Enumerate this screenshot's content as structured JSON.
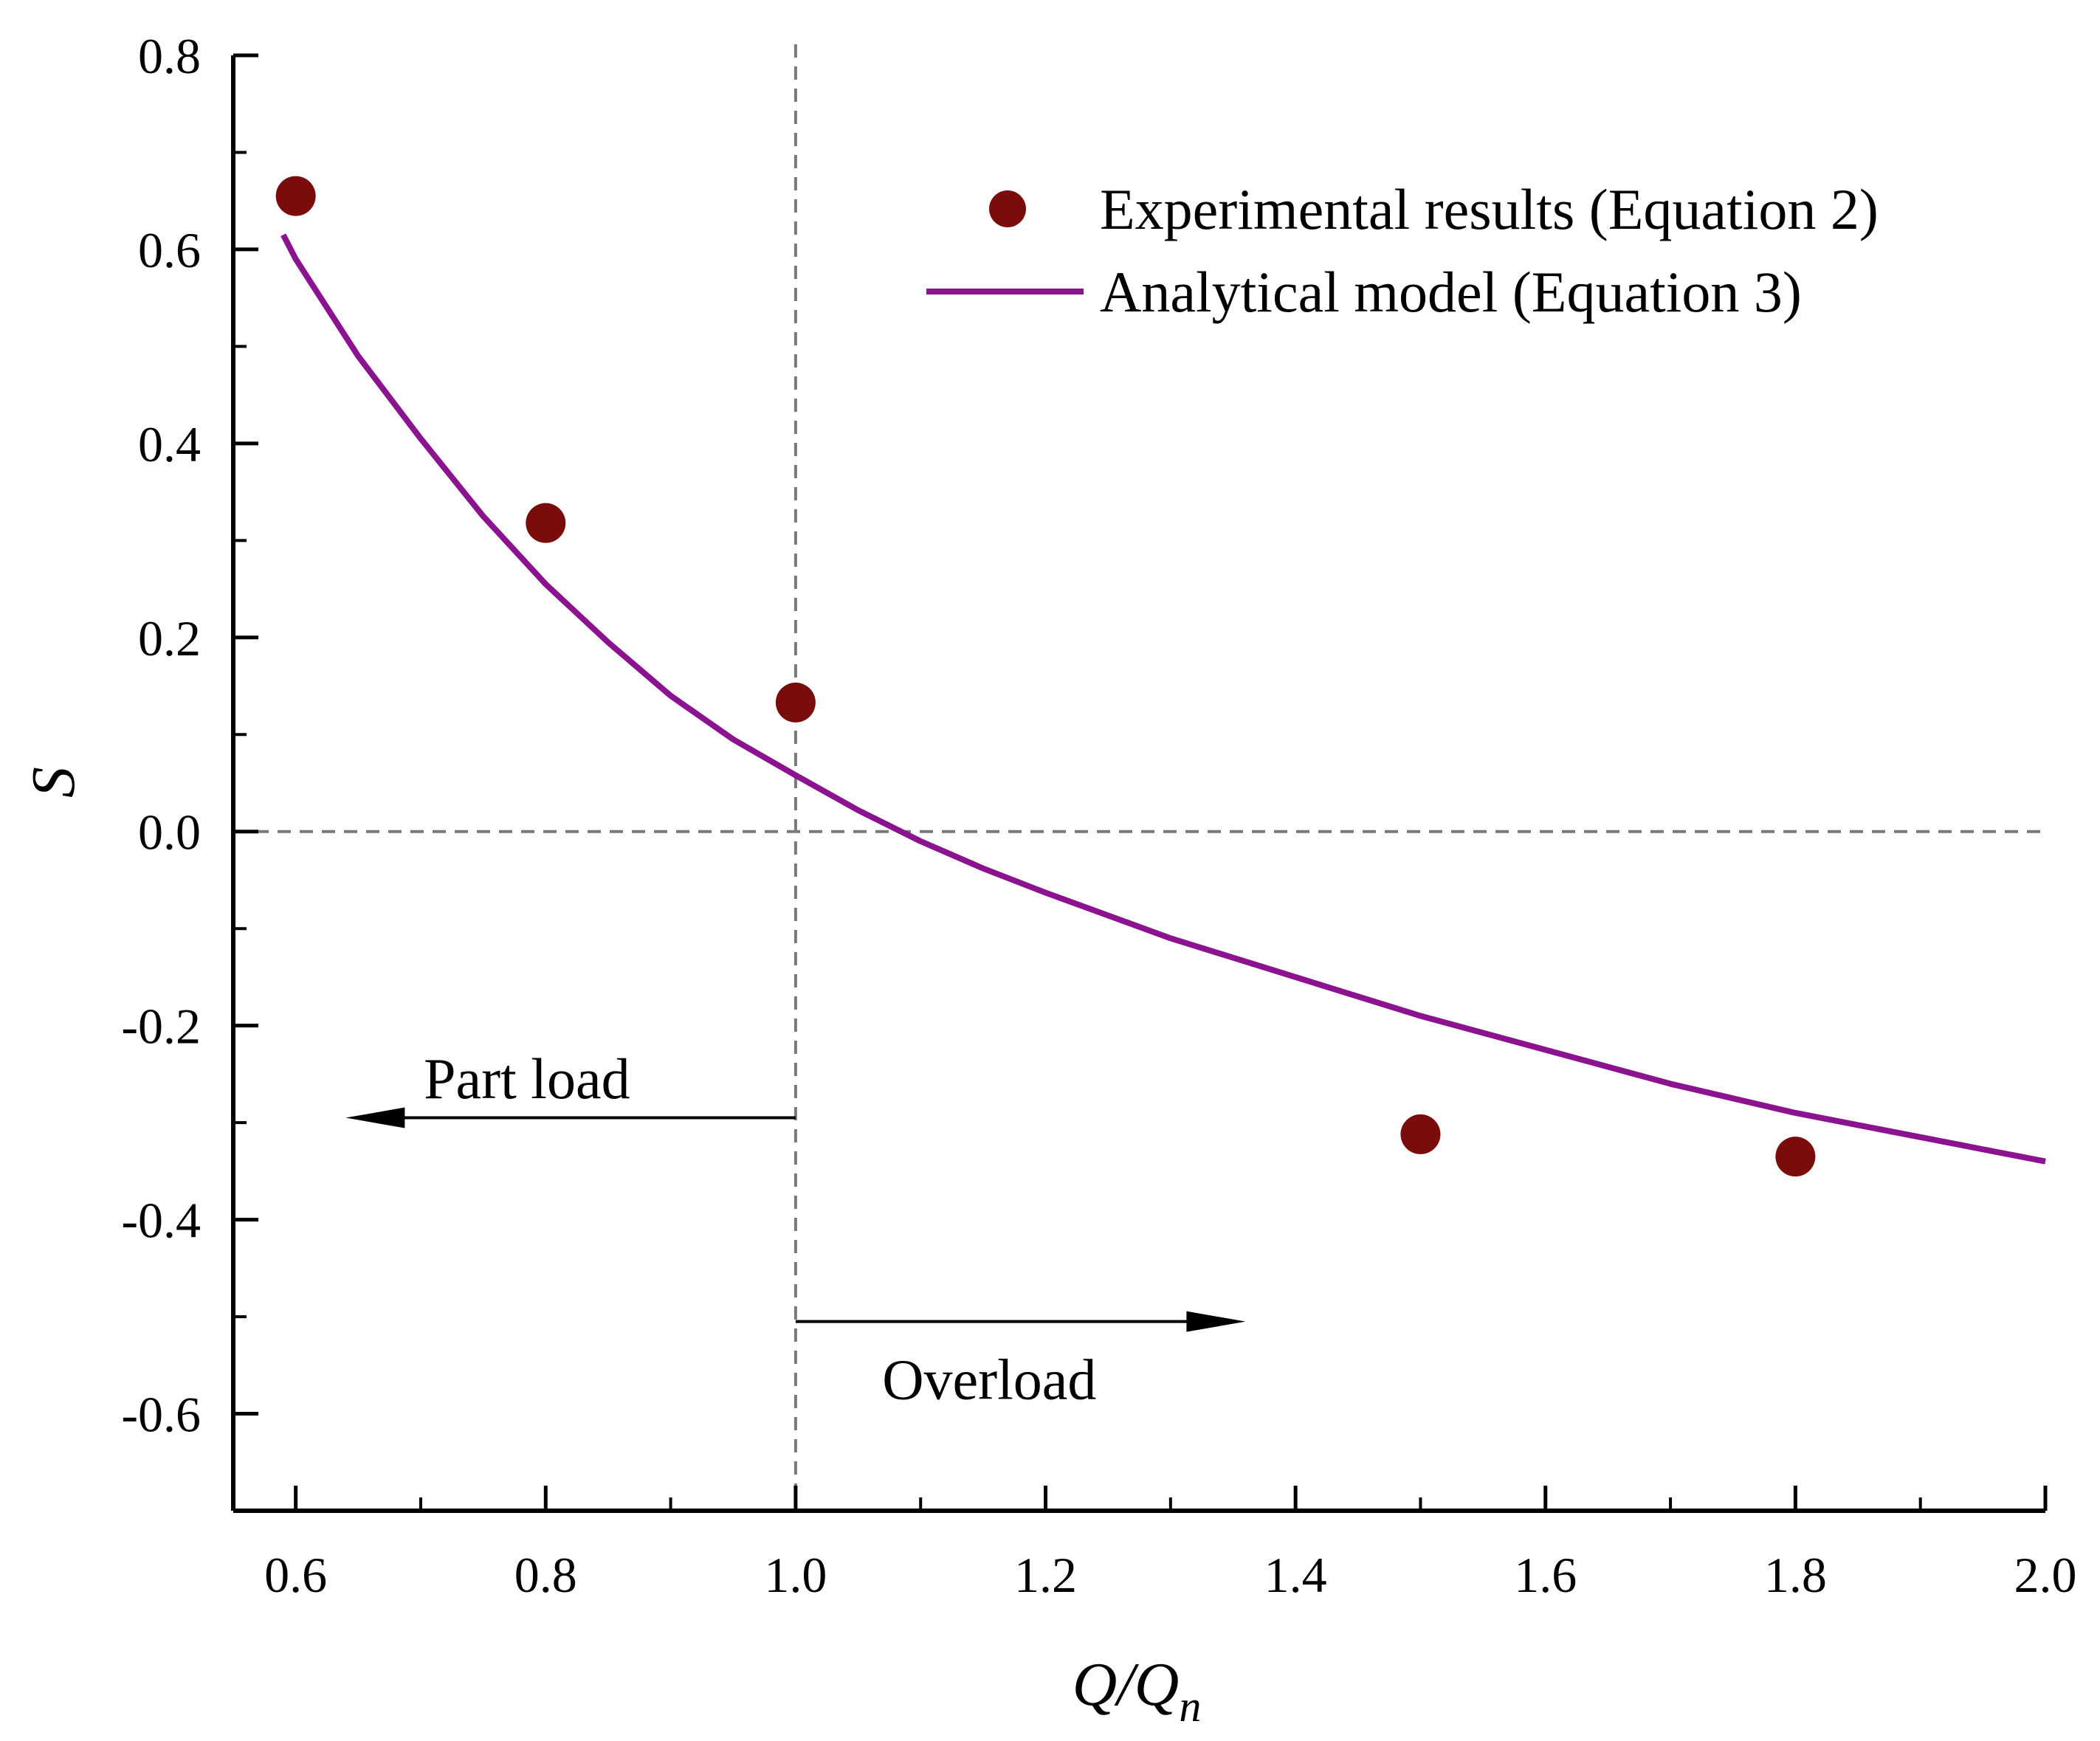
{
  "chart_data": {
    "type": "scatter",
    "title": "",
    "xlabel": "Q/Q",
    "xlabel_sub": "n",
    "ylabel": "S",
    "xlim": [
      0.55,
      2.0
    ],
    "ylim": [
      -0.7,
      0.8
    ],
    "x_ticks": [
      0.6,
      0.8,
      1.0,
      1.2,
      1.4,
      1.6,
      1.8,
      2.0
    ],
    "x_tick_labels": [
      "0.6",
      "0.8",
      "1.0",
      "1.2",
      "1.4",
      "1.6",
      "1.8",
      "2.0"
    ],
    "y_ticks": [
      -0.6,
      -0.4,
      -0.2,
      0.0,
      0.2,
      0.4,
      0.6,
      0.8
    ],
    "y_tick_labels": [
      "-0.6",
      "-0.4",
      "-0.2",
      "0.0",
      "0.2",
      "0.4",
      "0.6",
      "0.8"
    ],
    "grid": false,
    "legend_position": "top-right",
    "series": [
      {
        "name": "Experimental results (Equation 2)",
        "kind": "scatter",
        "color": "#7b0c0c",
        "x": [
          0.6,
          0.8,
          1.0,
          1.5,
          1.8
        ],
        "y": [
          0.655,
          0.318,
          0.133,
          -0.312,
          -0.335
        ]
      },
      {
        "name": "Analytical model (Equation 3)",
        "kind": "line",
        "color": "#8b138f",
        "x": [
          0.59,
          0.6,
          0.65,
          0.7,
          0.75,
          0.8,
          0.85,
          0.9,
          0.95,
          1.0,
          1.05,
          1.1,
          1.15,
          1.2,
          1.3,
          1.4,
          1.5,
          1.6,
          1.7,
          1.8,
          1.9,
          2.0
        ],
        "y": [
          0.615,
          0.59,
          0.49,
          0.405,
          0.325,
          0.255,
          0.195,
          0.14,
          0.095,
          0.058,
          0.022,
          -0.01,
          -0.038,
          -0.063,
          -0.11,
          -0.15,
          -0.19,
          -0.225,
          -0.26,
          -0.29,
          -0.315,
          -0.34
        ]
      }
    ],
    "reference_lines": [
      {
        "orientation": "vertical",
        "value": 1.0
      },
      {
        "orientation": "horizontal",
        "value": 0.0
      }
    ],
    "annotations": [
      {
        "text": "Part load",
        "direction": "left",
        "x_from": 1.0,
        "x_to": 0.64,
        "y": -0.295,
        "text_y": -0.255,
        "text_x": 0.785
      },
      {
        "text": "Overload",
        "direction": "right",
        "x_from": 1.0,
        "x_to": 1.36,
        "y": -0.505,
        "text_y": -0.565,
        "text_x": 1.155
      }
    ]
  }
}
